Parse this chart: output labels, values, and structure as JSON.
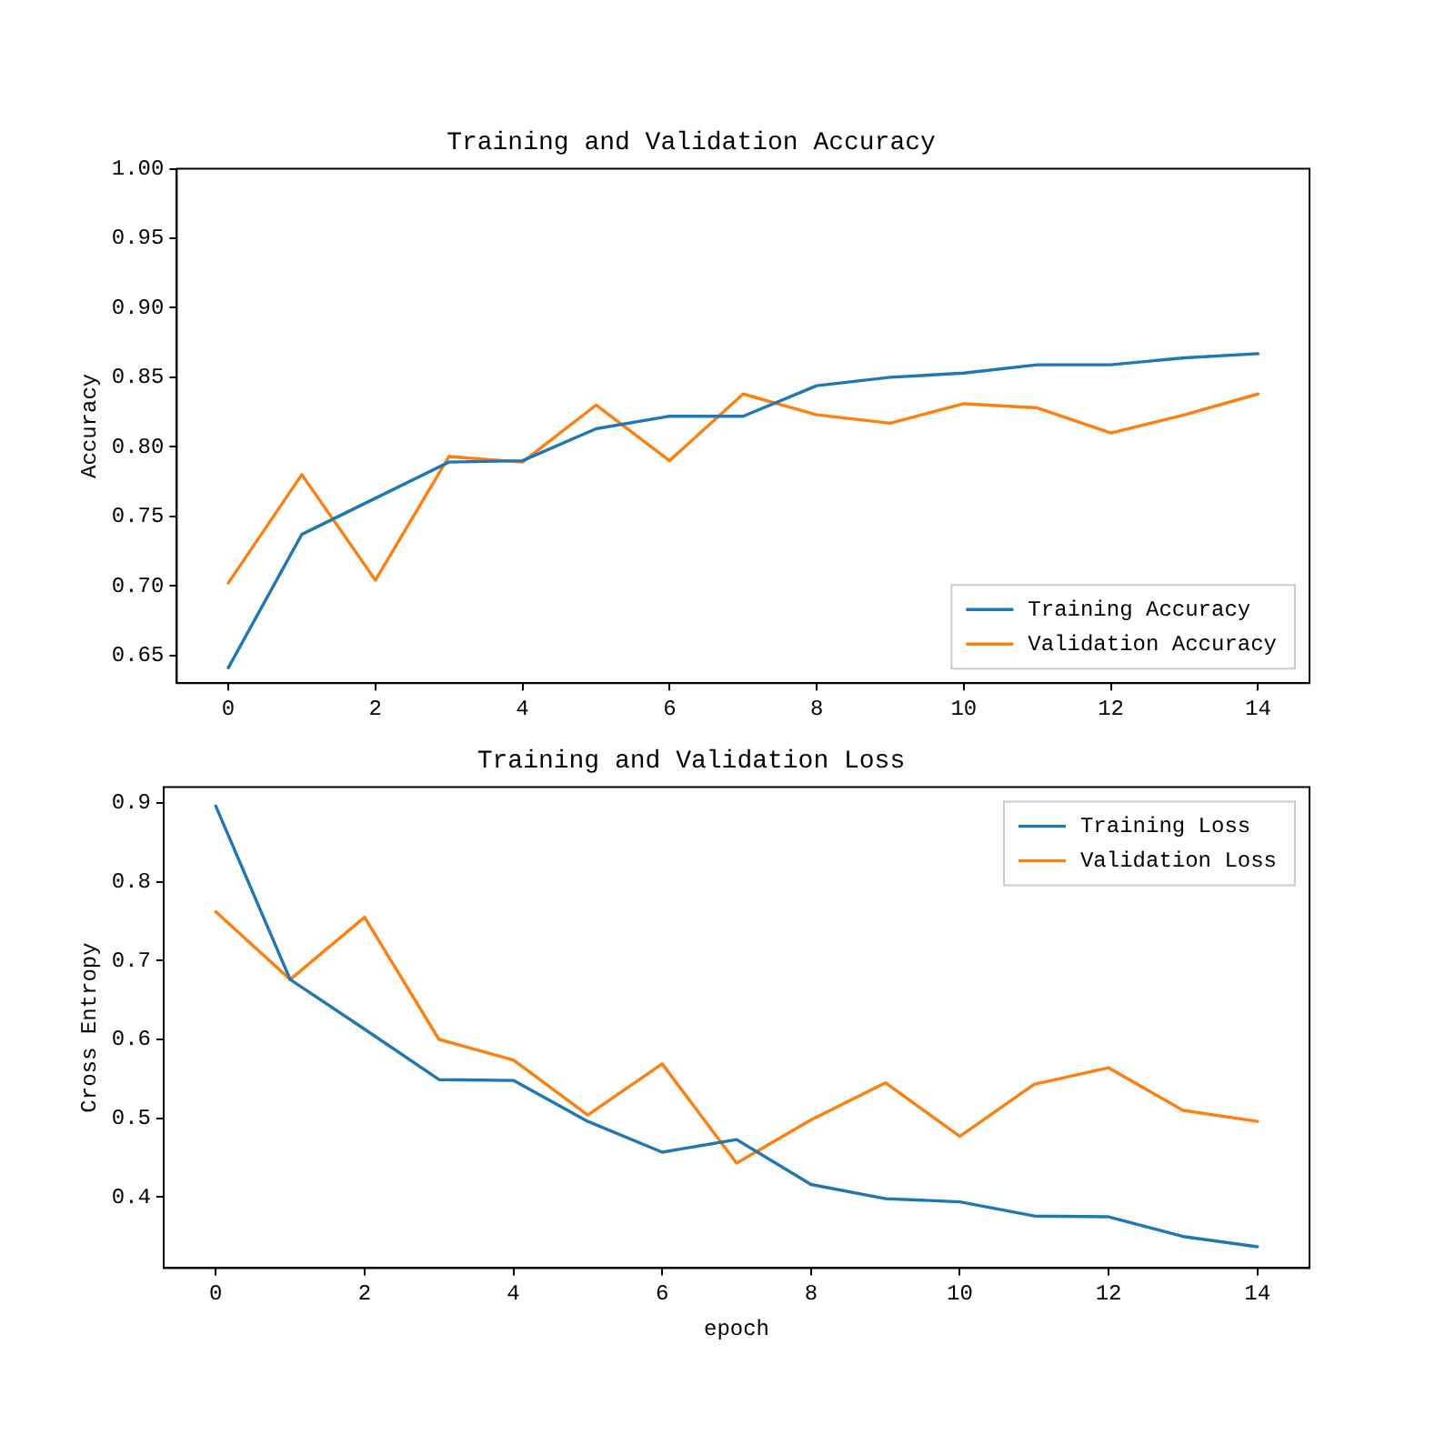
{
  "chart_data": [
    {
      "type": "line",
      "title": "Training and Validation Accuracy",
      "ylabel": "Accuracy",
      "x": [
        0,
        1,
        2,
        3,
        4,
        5,
        6,
        7,
        8,
        9,
        10,
        11,
        12,
        13,
        14
      ],
      "series": [
        {
          "name": "Training Accuracy",
          "color": "#1f77b4",
          "values": [
            0.641,
            0.737,
            0.763,
            0.789,
            0.79,
            0.813,
            0.822,
            0.822,
            0.844,
            0.85,
            0.853,
            0.859,
            0.859,
            0.864,
            0.867
          ]
        },
        {
          "name": "Validation Accuracy",
          "color": "#ff7f0e",
          "values": [
            0.702,
            0.78,
            0.704,
            0.793,
            0.789,
            0.83,
            0.79,
            0.838,
            0.823,
            0.817,
            0.831,
            0.828,
            0.81,
            0.823,
            0.838
          ]
        }
      ],
      "xlim": [
        -0.7,
        14.7
      ],
      "xticks": [
        0,
        2,
        4,
        6,
        8,
        10,
        12,
        14
      ],
      "ylim": [
        0.63,
        1.0
      ],
      "yticks": [
        {
          "value": 0.65,
          "label": "0.65"
        },
        {
          "value": 0.7,
          "label": "0.70"
        },
        {
          "value": 0.75,
          "label": "0.75"
        },
        {
          "value": 0.8,
          "label": "0.80"
        },
        {
          "value": 0.85,
          "label": "0.85"
        },
        {
          "value": 0.9,
          "label": "0.90"
        },
        {
          "value": 0.95,
          "label": "0.95"
        },
        {
          "value": 1.0,
          "label": "1.00"
        }
      ],
      "grid": false,
      "legend": "bottom right",
      "marker": "none",
      "line_style": "solid"
    },
    {
      "type": "line",
      "title": "Training and Validation Loss",
      "xlabel": "epoch",
      "ylabel": "Cross Entropy",
      "x": [
        0,
        1,
        2,
        3,
        4,
        5,
        6,
        7,
        8,
        9,
        10,
        11,
        12,
        13,
        14
      ],
      "series": [
        {
          "name": "Training Loss",
          "color": "#1f77b4",
          "values": [
            0.896,
            0.676,
            0.613,
            0.549,
            0.548,
            0.496,
            0.457,
            0.473,
            0.416,
            0.398,
            0.394,
            0.376,
            0.375,
            0.35,
            0.337
          ]
        },
        {
          "name": "Validation Loss",
          "color": "#ff7f0e",
          "values": [
            0.762,
            0.676,
            0.755,
            0.6,
            0.574,
            0.504,
            0.569,
            0.443,
            0.498,
            0.545,
            0.477,
            0.543,
            0.564,
            0.51,
            0.496
          ]
        }
      ],
      "xlim": [
        -0.7,
        14.7
      ],
      "xticks": [
        0,
        2,
        4,
        6,
        8,
        10,
        12,
        14
      ],
      "ylim": [
        0.31,
        0.92
      ],
      "yticks": [
        0.4,
        0.5,
        0.6,
        0.7,
        0.8,
        0.9
      ],
      "grid": false,
      "legend": "top right",
      "marker": "none",
      "line_style": "solid"
    }
  ]
}
